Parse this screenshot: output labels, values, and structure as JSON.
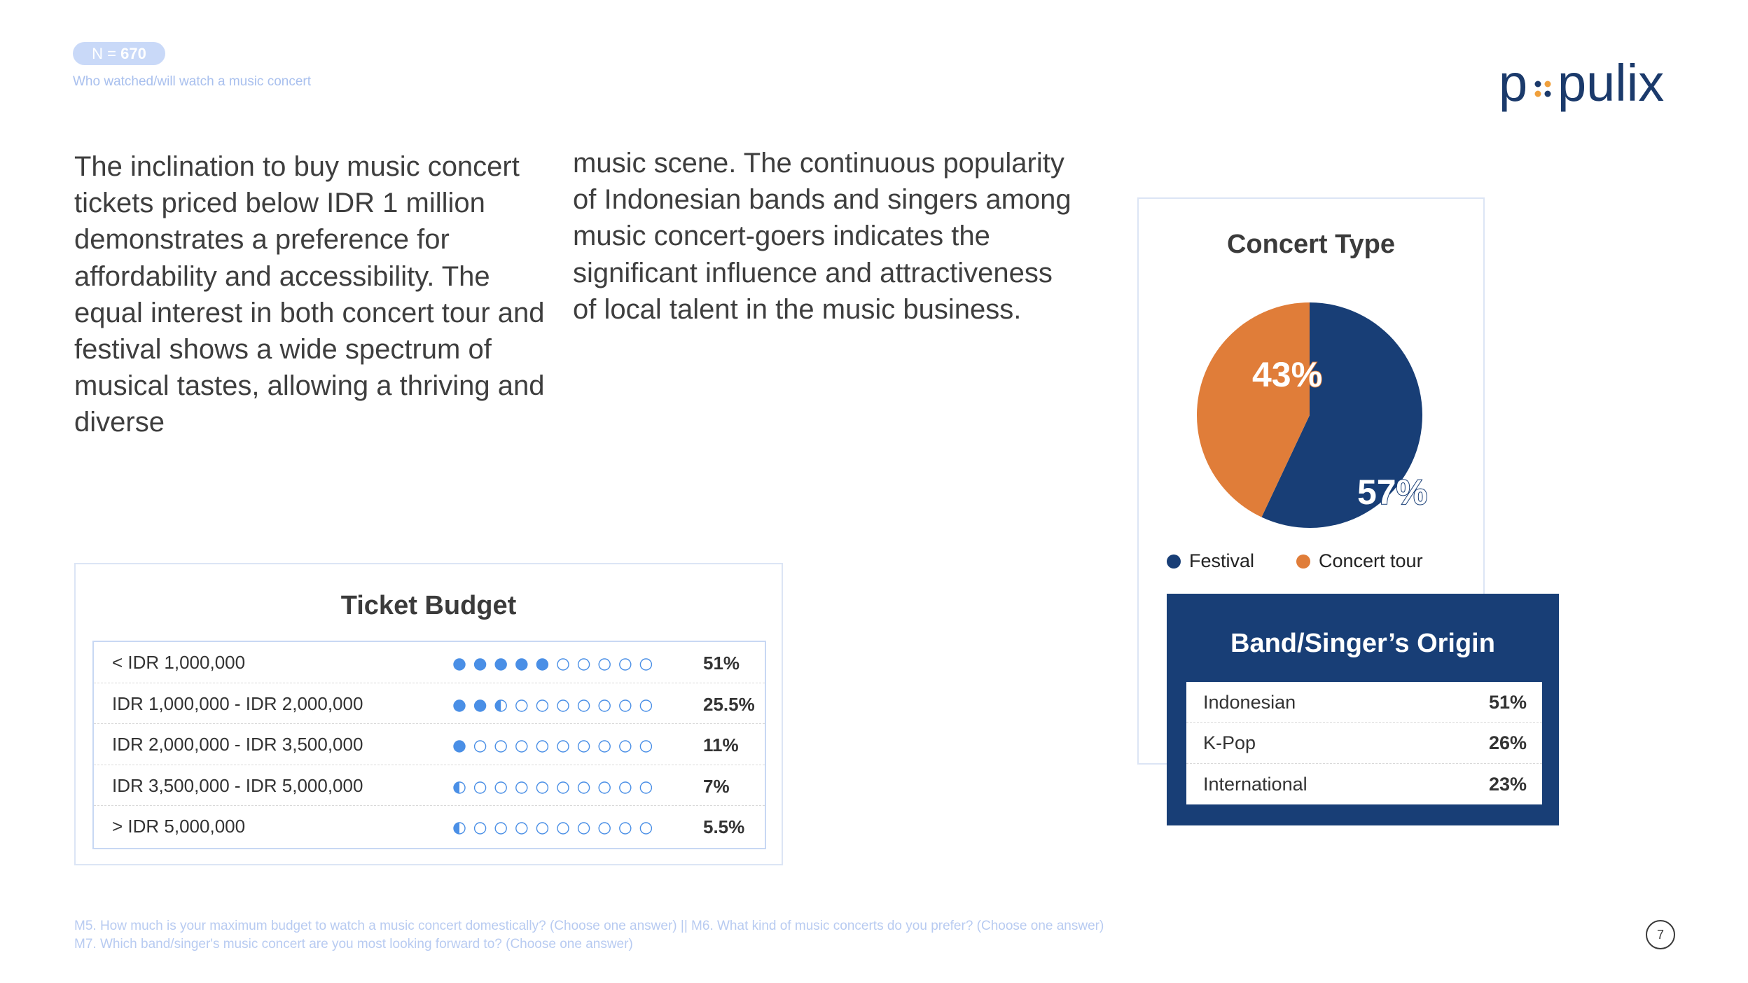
{
  "header": {
    "n_label": "N = ",
    "n_value": "670",
    "subtitle": "Who watched/will watch a music concert",
    "logo": "populix"
  },
  "body_text": {
    "column_1": "The inclination to buy music concert tickets priced below IDR 1 million demonstrates a preference for affordability and accessibility. The equal interest in both concert tour and festival shows a wide spectrum of musical tastes, allowing a thriving and diverse",
    "column_2": "music scene. The continuous popularity of Indonesian bands and singers among music concert-goers indicates the significant influence and attractiveness of local talent in the music business."
  },
  "chart_data": [
    {
      "type": "table",
      "title": "Ticket Budget",
      "categories": [
        "< IDR 1,000,000",
        "IDR 1,000,000 - IDR 2,000,000",
        "IDR 2,000,000 - IDR 3,500,000",
        "IDR 3,500,000 - IDR 5,000,000",
        "> IDR 5,000,000"
      ],
      "values": [
        51,
        25.5,
        11,
        7,
        5.5
      ],
      "value_labels": [
        "51%",
        "25.5%",
        "11%",
        "7%",
        "5.5%"
      ],
      "dot_scale": {
        "dots": 10,
        "filled": [
          5,
          2.5,
          1,
          0.5,
          0.5
        ]
      }
    },
    {
      "type": "pie",
      "title": "Concert Type",
      "categories": [
        "Festival",
        "Concert tour"
      ],
      "values": [
        57,
        43
      ],
      "value_labels": [
        "57%",
        "43%"
      ],
      "colors": [
        "#183e76",
        "#e07d39"
      ],
      "legend": "bottom"
    },
    {
      "type": "table",
      "title": "Band/Singer’s Origin",
      "categories": [
        "Indonesian",
        "K-Pop",
        "International"
      ],
      "values": [
        51,
        26,
        23
      ],
      "value_labels": [
        "51%",
        "26%",
        "23%"
      ]
    }
  ],
  "footer": {
    "note_1": "M5. How much is your maximum budget to watch a music concert domestically? (Choose one answer) || M6. What kind of music concerts do you prefer? (Choose one answer)",
    "note_2": "M7. Which band/singer's music concert are you most looking forward to? (Choose one answer)",
    "page_number": "7"
  },
  "colors": {
    "dot_fill": "#4a8fe6",
    "navy": "#183e76",
    "orange": "#e07d39"
  }
}
